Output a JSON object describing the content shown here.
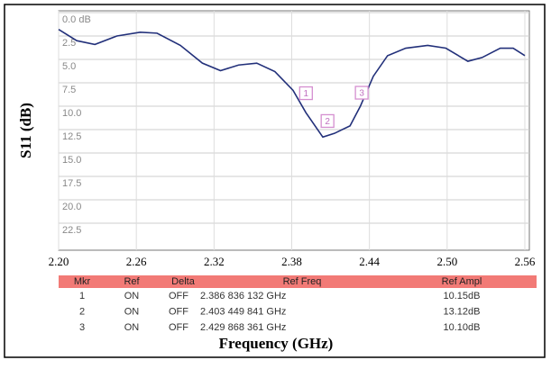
{
  "chart_data": {
    "type": "line",
    "y_label": "S11 (dB)",
    "x_label": "Frequency (GHz)",
    "x": [
      2.2,
      2.214,
      2.228,
      2.245,
      2.263,
      2.276,
      2.294,
      2.311,
      2.325,
      2.339,
      2.353,
      2.367,
      2.381,
      2.391,
      2.404,
      2.413,
      2.425,
      2.433,
      2.443,
      2.454,
      2.468,
      2.485,
      2.499,
      2.516,
      2.527,
      2.541,
      2.551,
      2.56
    ],
    "values": [
      1.8,
      3.0,
      3.4,
      2.5,
      2.1,
      2.2,
      3.5,
      5.4,
      6.2,
      5.6,
      5.4,
      6.3,
      8.3,
      10.7,
      13.3,
      12.9,
      12.1,
      10.0,
      6.8,
      4.6,
      3.8,
      3.5,
      3.8,
      5.2,
      4.8,
      3.8,
      3.8,
      4.6
    ],
    "color": "#22307a",
    "xlim": [
      2.2,
      2.56
    ],
    "xticks": [
      {
        "value": 2.2,
        "label": "2.20"
      },
      2.26,
      2.32,
      2.38,
      2.44,
      {
        "value": 2.5,
        "label": "2.50"
      },
      2.56
    ],
    "ylim": [
      0,
      25
    ],
    "y_inverted": true,
    "yticks": [
      {
        "value": 0,
        "label": "0.0 dB"
      },
      2.5,
      {
        "value": 5,
        "label": "5.0"
      },
      7.5,
      {
        "value": 10,
        "label": "10.0"
      },
      12.5,
      {
        "value": 15,
        "label": "15.0"
      },
      17.5,
      {
        "value": 20,
        "label": "20.0"
      },
      22.5
    ],
    "grid": true
  },
  "marker_table": {
    "columns": [
      "Mkr",
      "Ref",
      "Delta",
      "Ref Freq",
      "Ref Ampl"
    ],
    "rows": [
      [
        "1",
        "ON",
        "OFF",
        "2.386 836 132 GHz",
        "10.15dB"
      ],
      [
        "2",
        "ON",
        "OFF",
        "2.403 449 841 GHz",
        "13.12dB"
      ],
      [
        "3",
        "ON",
        "OFF",
        "2.429 868 361 GHz",
        "10.10dB"
      ]
    ]
  }
}
